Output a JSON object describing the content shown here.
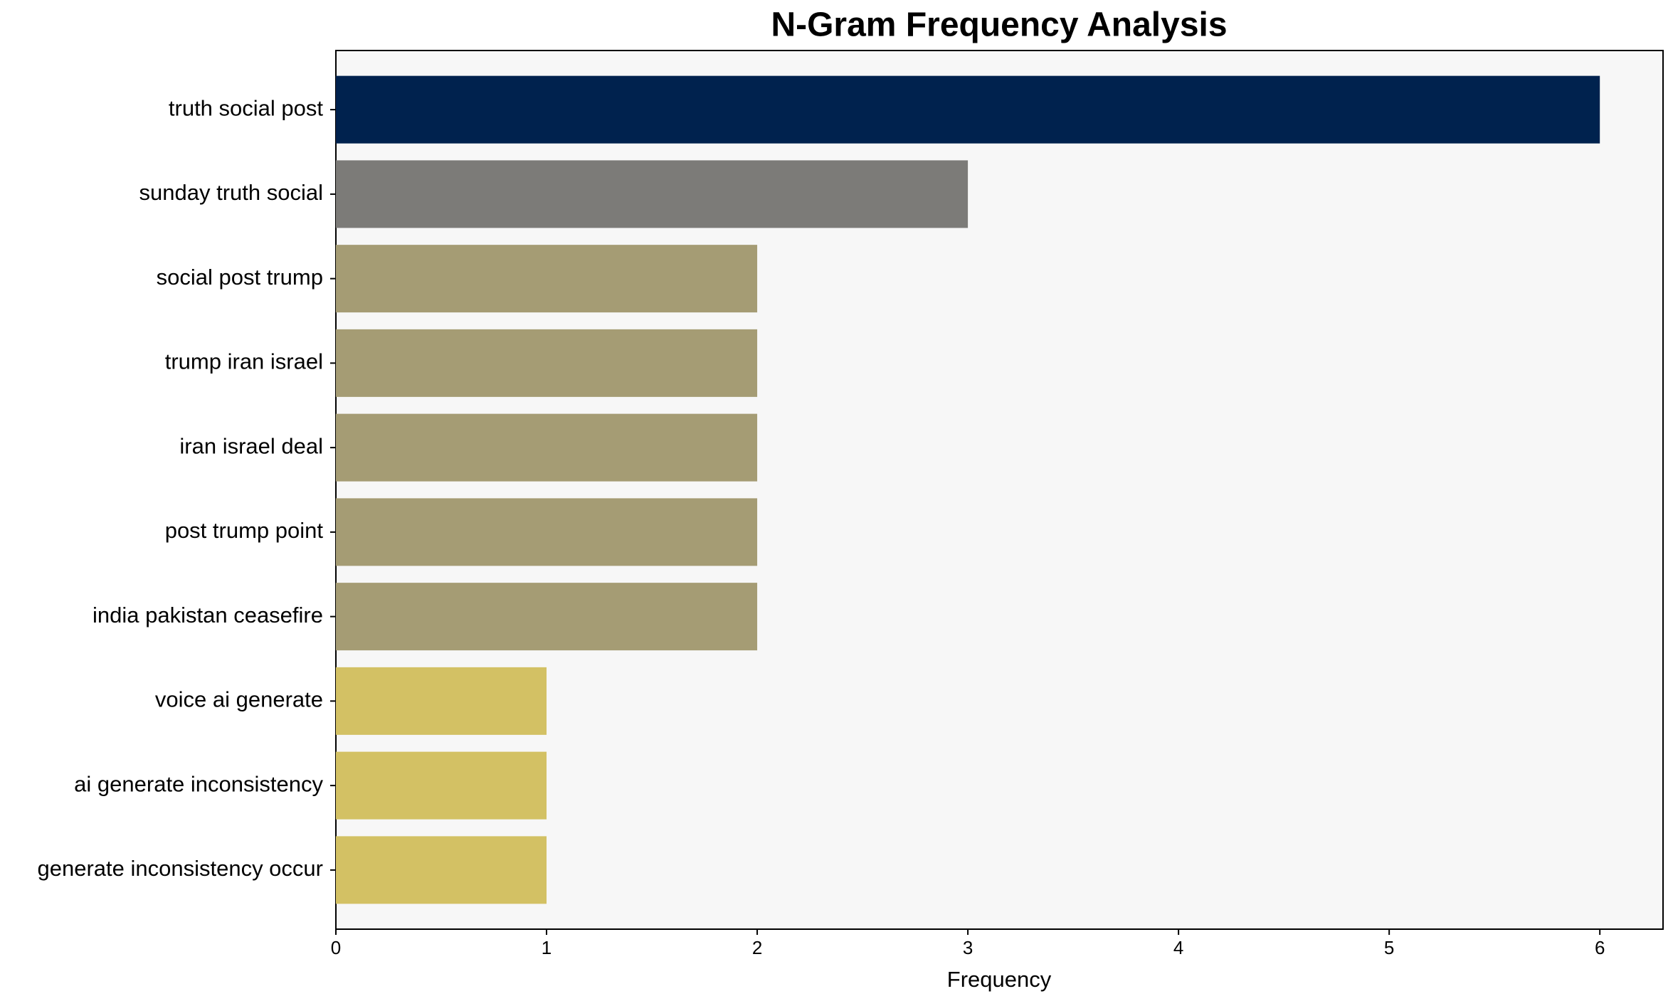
{
  "chart_data": {
    "type": "barh",
    "title": "N-Gram Frequency Analysis",
    "xlabel": "Frequency",
    "categories": [
      "truth social post",
      "sunday truth social",
      "social post trump",
      "trump iran israel",
      "iran israel deal",
      "post trump point",
      "india pakistan ceasefire",
      "voice ai generate",
      "ai generate inconsistency",
      "generate inconsistency occur"
    ],
    "values": [
      6,
      3,
      2,
      2,
      2,
      2,
      2,
      1,
      1,
      1
    ],
    "colors": [
      "#00224e",
      "#7c7b78",
      "#a59c74",
      "#a59c74",
      "#a59c74",
      "#a59c74",
      "#a59c74",
      "#d3c164",
      "#d3c164",
      "#d3c164"
    ],
    "xlim": [
      0,
      6.3
    ],
    "xticks": [
      0,
      1,
      2,
      3,
      4,
      5,
      6
    ]
  }
}
